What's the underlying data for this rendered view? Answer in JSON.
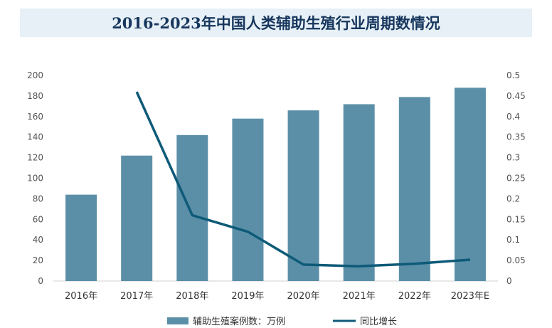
{
  "chart_data": {
    "type": "bar+line",
    "title": "2016-2023年中国人类辅助生殖行业周期数情况",
    "categories": [
      "2016年",
      "2017年",
      "2018年",
      "2019年",
      "2020年",
      "2021年",
      "2022年",
      "2023年E"
    ],
    "series": [
      {
        "name": "辅助生殖案例数：万例",
        "type": "bar",
        "axis": "left",
        "color": "#5b8fa8",
        "values": [
          84,
          122,
          142,
          158,
          166,
          172,
          179,
          188
        ]
      },
      {
        "name": "同比增长",
        "type": "line",
        "axis": "right",
        "color": "#0e5a78",
        "values": [
          null,
          0.46,
          0.16,
          0.12,
          0.04,
          0.036,
          0.042,
          0.052
        ]
      }
    ],
    "y_left": {
      "range": [
        0,
        200
      ],
      "ticks": [
        0,
        20,
        40,
        60,
        80,
        100,
        120,
        140,
        160,
        180,
        200
      ]
    },
    "y_right": {
      "range": [
        0,
        0.5
      ],
      "ticks": [
        "0",
        "0.05",
        "0.1",
        "0.15",
        "0.2",
        "0.25",
        "0.3",
        "0.35",
        "0.4",
        "0.45",
        "0.5"
      ]
    },
    "legend": "bottom",
    "grid": false
  }
}
